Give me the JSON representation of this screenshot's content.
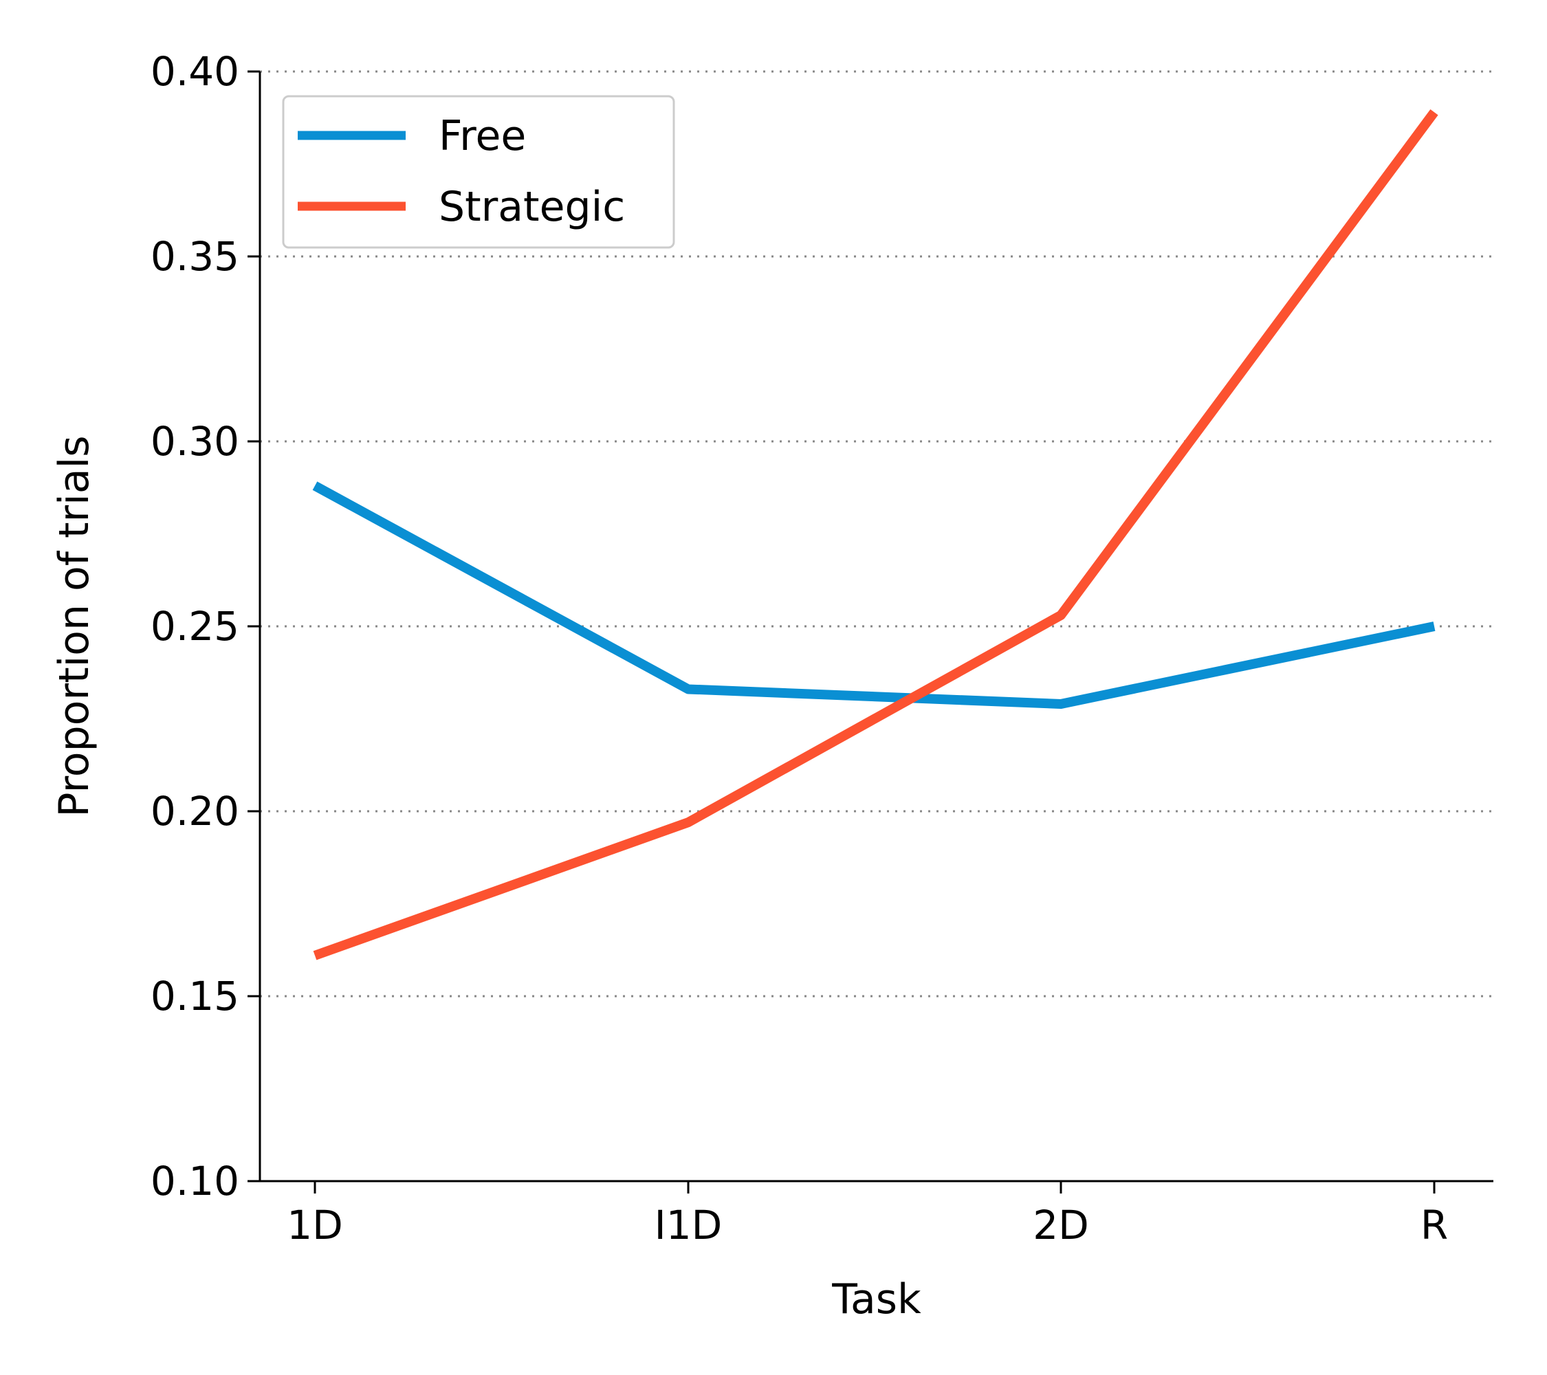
{
  "chart_data": {
    "type": "line",
    "title": "",
    "xlabel": "Task",
    "ylabel": "Proportion of trials",
    "categories": [
      "1D",
      "I1D",
      "2D",
      "R"
    ],
    "ylim": [
      0.1,
      0.4
    ],
    "yticks": [
      "0.10",
      "0.15",
      "0.20",
      "0.25",
      "0.30",
      "0.35",
      "0.40"
    ],
    "grid": "horizontal dotted",
    "legend_position": "top-left",
    "series": [
      {
        "name": "Free",
        "color": "#0a8fd3",
        "values": [
          0.288,
          0.233,
          0.229,
          0.25
        ]
      },
      {
        "name": "Strategic",
        "color": "#fc5230",
        "values": [
          0.161,
          0.197,
          0.253,
          0.389
        ]
      }
    ]
  }
}
